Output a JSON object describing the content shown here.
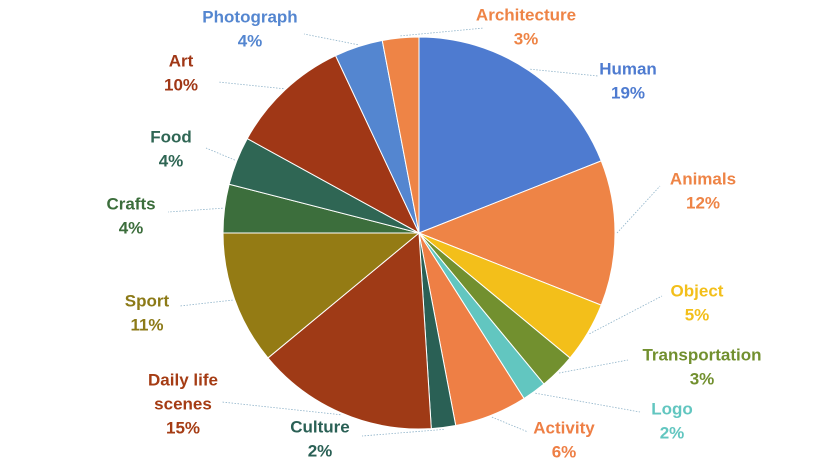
{
  "chart_data": {
    "type": "pie",
    "title": "",
    "slices": [
      {
        "label": "Human",
        "value": 19,
        "value_label": "19%",
        "color": "#4e7bd0",
        "label_color": "#4e7bd0"
      },
      {
        "label": "Animals",
        "value": 12,
        "value_label": "12%",
        "color": "#ee8446",
        "label_color": "#ee8446"
      },
      {
        "label": "Object",
        "value": 5,
        "value_label": "5%",
        "color": "#f3bf1a",
        "label_color": "#f3bf1a"
      },
      {
        "label": "Transportation",
        "value": 3,
        "value_label": "3%",
        "color": "#72902f",
        "label_color": "#72902f"
      },
      {
        "label": "Logo",
        "value": 2,
        "value_label": "2%",
        "color": "#62c6c0",
        "label_color": "#62c6c0"
      },
      {
        "label": "Activity",
        "value": 6,
        "value_label": "6%",
        "color": "#ee7f45",
        "label_color": "#ee7f45"
      },
      {
        "label": "Culture",
        "value": 2,
        "value_label": "2%",
        "color": "#2a6055",
        "label_color": "#2a6055"
      },
      {
        "label": "Daily life scenes",
        "value": 15,
        "value_label": "15%",
        "color": "#9f3a16",
        "label_color": "#a53c14"
      },
      {
        "label": "Sport",
        "value": 11,
        "value_label": "11%",
        "color": "#947b14",
        "label_color": "#8c7a17"
      },
      {
        "label": "Crafts",
        "value": 4,
        "value_label": "4%",
        "color": "#3c6e3c",
        "label_color": "#3c6e3c"
      },
      {
        "label": "Food",
        "value": 4,
        "value_label": "4%",
        "color": "#2f6654",
        "label_color": "#2f6654"
      },
      {
        "label": "Art",
        "value": 10,
        "value_label": "10%",
        "color": "#a03716",
        "label_color": "#a03716"
      },
      {
        "label": "Photograph",
        "value": 4,
        "value_label": "4%",
        "color": "#5486d0",
        "label_color": "#5486d0"
      },
      {
        "label": "Architecture",
        "value": 3,
        "value_label": "3%",
        "color": "#ee8446",
        "label_color": "#ee8446"
      }
    ]
  }
}
